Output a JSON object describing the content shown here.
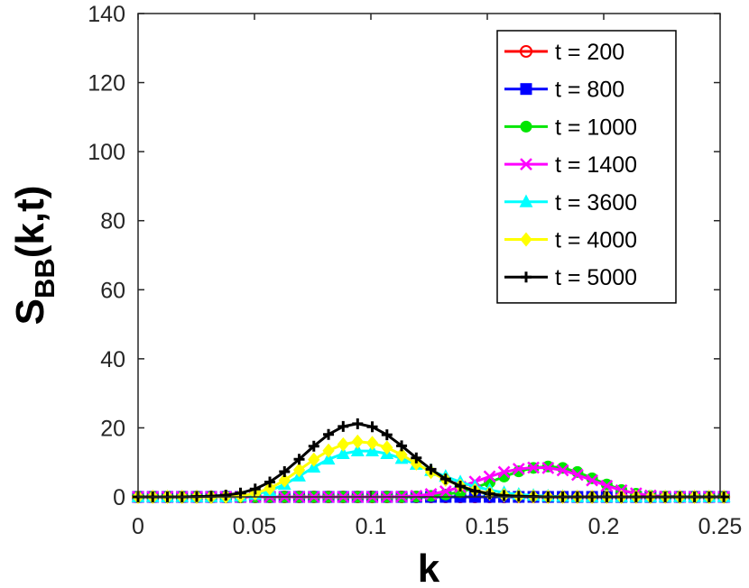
{
  "chart_data": {
    "type": "line",
    "xlabel": "k",
    "ylabel_main": "S",
    "ylabel_sub": "BB",
    "ylabel_tail": "(k,t)",
    "xlim": [
      0,
      0.25
    ],
    "ylim": [
      0,
      140
    ],
    "xticks": [
      0,
      0.05,
      0.1,
      0.15,
      0.2,
      0.25
    ],
    "xtick_labels": [
      "0",
      "0.05",
      "0.1",
      "0.15",
      "0.2",
      "0.25"
    ],
    "yticks": [
      0,
      20,
      40,
      60,
      80,
      100,
      120,
      140
    ],
    "ytick_labels": [
      "0",
      "20",
      "40",
      "60",
      "80",
      "100",
      "120",
      "140"
    ],
    "grid": false,
    "legend_position": "top-right",
    "x": [
      0,
      0.0063,
      0.0126,
      0.0189,
      0.0252,
      0.0314,
      0.0377,
      0.044,
      0.0503,
      0.0566,
      0.0629,
      0.0692,
      0.0755,
      0.0818,
      0.0881,
      0.0943,
      0.1006,
      0.1069,
      0.1132,
      0.1195,
      0.1258,
      0.1321,
      0.1384,
      0.1447,
      0.151,
      0.1572,
      0.1635,
      0.1698,
      0.1761,
      0.1824,
      0.1887,
      0.195,
      0.2013,
      0.2076,
      0.2139,
      0.2201,
      0.2264,
      0.2327,
      0.239,
      0.2453,
      0.2516
    ],
    "series": [
      {
        "name": "t = 200",
        "color": "#ff0000",
        "marker": "circle",
        "values": [
          0,
          0,
          0,
          0,
          0,
          0,
          0,
          0,
          0,
          0,
          0,
          0,
          0,
          0,
          0,
          0,
          0,
          0,
          0,
          0,
          0,
          0,
          0,
          0,
          0,
          0,
          0,
          0,
          0,
          0,
          0,
          0,
          0,
          0,
          0,
          0,
          0,
          0,
          0,
          0,
          0
        ]
      },
      {
        "name": "t = 800",
        "color": "#0000ff",
        "marker": "square",
        "values": [
          0,
          0,
          0,
          0,
          0,
          0,
          0,
          0,
          0,
          0,
          0,
          0,
          0,
          0,
          0,
          0,
          0,
          0,
          0,
          0,
          0,
          0,
          0,
          0,
          0,
          0,
          0,
          0,
          0,
          0,
          0,
          0,
          0,
          0,
          0,
          0,
          0,
          0,
          0,
          0,
          0
        ]
      },
      {
        "name": "t = 1000",
        "color": "#00e600",
        "marker": "dot",
        "values": [
          0,
          0,
          0,
          0,
          0,
          0,
          0,
          0,
          0,
          0,
          0,
          0,
          0,
          0,
          0,
          0,
          0,
          0,
          0,
          0.1,
          0.3,
          0.7,
          1.4,
          2.6,
          4.2,
          5.9,
          7.4,
          8.4,
          8.8,
          8.4,
          7.2,
          5.4,
          3.6,
          2,
          0.9,
          0.3,
          0.1,
          0,
          0,
          0,
          0
        ]
      },
      {
        "name": "t = 1400",
        "color": "#ff00ff",
        "marker": "x",
        "values": [
          0,
          0,
          0,
          0,
          0,
          0,
          0,
          0,
          0,
          0,
          0,
          0,
          0,
          0,
          0,
          0,
          0,
          0,
          0.1,
          0.3,
          0.8,
          1.6,
          2.9,
          4.4,
          5.9,
          7.2,
          8.1,
          8.5,
          8.4,
          7.7,
          6.4,
          4.8,
          3.2,
          1.9,
          1,
          0.4,
          0.1,
          0,
          0,
          0,
          0
        ]
      },
      {
        "name": "t = 3600",
        "color": "#00ffff",
        "marker": "triangle",
        "values": [
          0,
          0,
          0,
          0,
          0,
          0,
          0,
          0.2,
          0.7,
          1.8,
          3.6,
          6,
          8.6,
          10.9,
          12.5,
          13.3,
          13.3,
          12.5,
          11.1,
          9.4,
          7.6,
          5.9,
          4.3,
          3,
          2,
          1.2,
          0.7,
          0.4,
          0.2,
          0.1,
          0,
          0,
          0,
          0,
          0,
          0,
          0,
          0,
          0,
          0,
          0
        ]
      },
      {
        "name": "t = 4000",
        "color": "#ffff00",
        "marker": "diamond",
        "values": [
          0,
          0,
          0,
          0,
          0,
          0,
          0.1,
          0.3,
          1,
          2.5,
          4.8,
          7.8,
          10.8,
          13.4,
          15.2,
          16,
          15.6,
          14.3,
          12.2,
          9.7,
          7.2,
          5,
          3.2,
          1.9,
          1,
          0.5,
          0.2,
          0.1,
          0,
          0,
          0,
          0,
          0,
          0,
          0,
          0,
          0,
          0,
          0,
          0,
          0
        ]
      },
      {
        "name": "t = 5000",
        "color": "#000000",
        "marker": "plus",
        "values": [
          0,
          0,
          0,
          0,
          0.1,
          0.2,
          0.5,
          1.1,
          2.3,
          4.3,
          7.3,
          10.9,
          14.7,
          18.1,
          20.4,
          21.2,
          20.3,
          18,
          14.8,
          11.3,
          8,
          5.2,
          3.1,
          1.7,
          0.9,
          0.4,
          0.2,
          0.1,
          0,
          0,
          0,
          0,
          0,
          0,
          0,
          0,
          0,
          0,
          0,
          0,
          0
        ]
      }
    ]
  }
}
